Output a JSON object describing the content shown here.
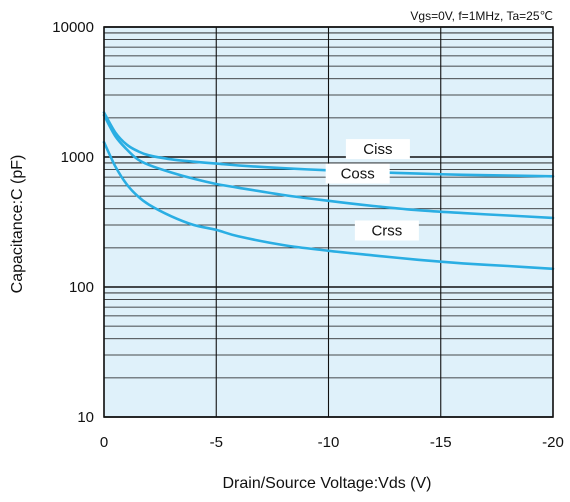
{
  "chart_data": {
    "type": "line",
    "conditions": "Vgs=0V, f=1MHz, Ta=25℃",
    "xlabel": "Drain/Source Voltage:Vds  (V)",
    "ylabel": "Capacitance:C  (pF)",
    "xlim": [
      0,
      -20
    ],
    "ylim": [
      10,
      10000
    ],
    "yscale": "log",
    "grid": true,
    "x_ticks": [
      0,
      -5,
      -10,
      -15,
      -20
    ],
    "y_ticks": [
      10,
      100,
      1000,
      10000
    ],
    "colors": {
      "plot_bg": "#dff1fa",
      "line": "#2aaee3",
      "grid": "#111111"
    },
    "series": [
      {
        "name": "Ciss",
        "x": [
          0,
          -0.5,
          -1,
          -1.5,
          -2,
          -3,
          -4,
          -5,
          -6,
          -8,
          -10,
          -12,
          -14,
          -16,
          -18,
          -20
        ],
        "y": [
          2200,
          1550,
          1250,
          1110,
          1030,
          960,
          920,
          890,
          860,
          820,
          790,
          765,
          745,
          730,
          720,
          710
        ]
      },
      {
        "name": "Coss",
        "x": [
          0,
          -0.5,
          -1,
          -1.5,
          -2,
          -3,
          -4,
          -5,
          -6,
          -8,
          -10,
          -12,
          -14,
          -16,
          -18,
          -20
        ],
        "y": [
          2100,
          1450,
          1150,
          960,
          870,
          760,
          680,
          620,
          580,
          510,
          460,
          420,
          390,
          370,
          355,
          340
        ]
      },
      {
        "name": "Crss",
        "x": [
          0,
          -0.5,
          -1,
          -1.5,
          -2,
          -3,
          -4,
          -5,
          -6,
          -8,
          -10,
          -12,
          -14,
          -16,
          -18,
          -20
        ],
        "y": [
          1300,
          850,
          620,
          500,
          430,
          350,
          300,
          275,
          245,
          210,
          190,
          175,
          162,
          152,
          145,
          138
        ]
      }
    ]
  }
}
